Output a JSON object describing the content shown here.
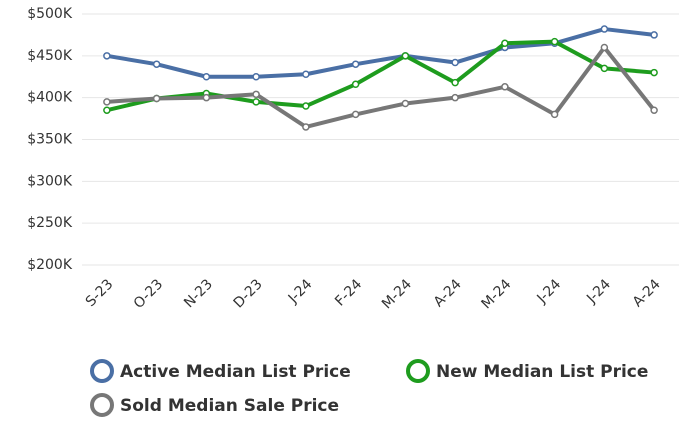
{
  "chart_data": {
    "type": "line",
    "categories": [
      "S-23",
      "O-23",
      "N-23",
      "D-23",
      "J-24",
      "F-24",
      "M-24",
      "A-24",
      "M-24",
      "J-24",
      "J-24",
      "A-24"
    ],
    "series": [
      {
        "name": "Active Median List Price",
        "color": "#4a6fa5",
        "values": [
          450000,
          440000,
          425000,
          425000,
          428000,
          440000,
          450000,
          442000,
          460000,
          465000,
          482000,
          475000
        ]
      },
      {
        "name": "New Median List Price",
        "color": "#1e9c1e",
        "values": [
          385000,
          399000,
          405000,
          395000,
          390000,
          416000,
          450000,
          418000,
          465000,
          467000,
          435000,
          430000
        ]
      },
      {
        "name": "Sold Median Sale Price",
        "color": "#777777",
        "values": [
          395000,
          399000,
          400000,
          404000,
          365000,
          380000,
          393000,
          400000,
          413000,
          380000,
          460000,
          385000
        ]
      }
    ],
    "ylim": [
      200000,
      500000
    ],
    "yticks": [
      {
        "value": 200000,
        "label": "$200K"
      },
      {
        "value": 250000,
        "label": "$250K"
      },
      {
        "value": 300000,
        "label": "$300K"
      },
      {
        "value": 350000,
        "label": "$350K"
      },
      {
        "value": 400000,
        "label": "$400K"
      },
      {
        "value": 450000,
        "label": "$450K"
      },
      {
        "value": 500000,
        "label": "$500K"
      }
    ],
    "grid": true
  }
}
